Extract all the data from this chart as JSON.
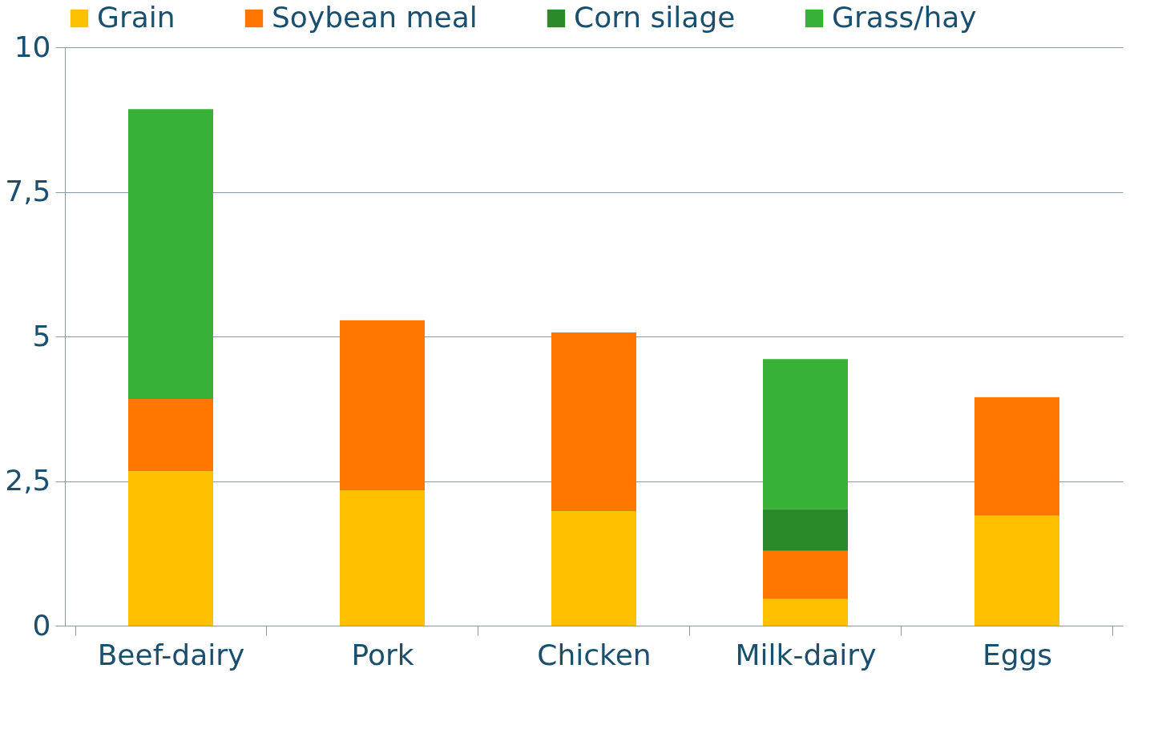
{
  "chart_data": {
    "type": "bar",
    "stacked": true,
    "categories": [
      "Beef-dairy",
      "Pork",
      "Chicken",
      "Milk-dairy",
      "Eggs"
    ],
    "series": [
      {
        "name": "Grain",
        "color": "#ffc000",
        "values": [
          2.67,
          2.34,
          1.98,
          0.46,
          1.9
        ]
      },
      {
        "name": "Soybean meal",
        "color": "#ff7700",
        "values": [
          1.25,
          2.94,
          3.09,
          0.83,
          2.05
        ]
      },
      {
        "name": "Corn silage",
        "color": "#2a8a2a",
        "values": [
          null,
          null,
          null,
          0.73,
          null
        ]
      },
      {
        "name": "Grass/hay",
        "color": "#38b236",
        "values": [
          5.01,
          null,
          null,
          2.59,
          null
        ]
      }
    ],
    "ylim": [
      0,
      10
    ],
    "yticks": [
      0,
      {
        "value": 2.5,
        "label": "2,5"
      },
      5,
      {
        "value": 7.5,
        "label": "7,5"
      },
      10
    ],
    "grid": "y",
    "legend": "top"
  }
}
